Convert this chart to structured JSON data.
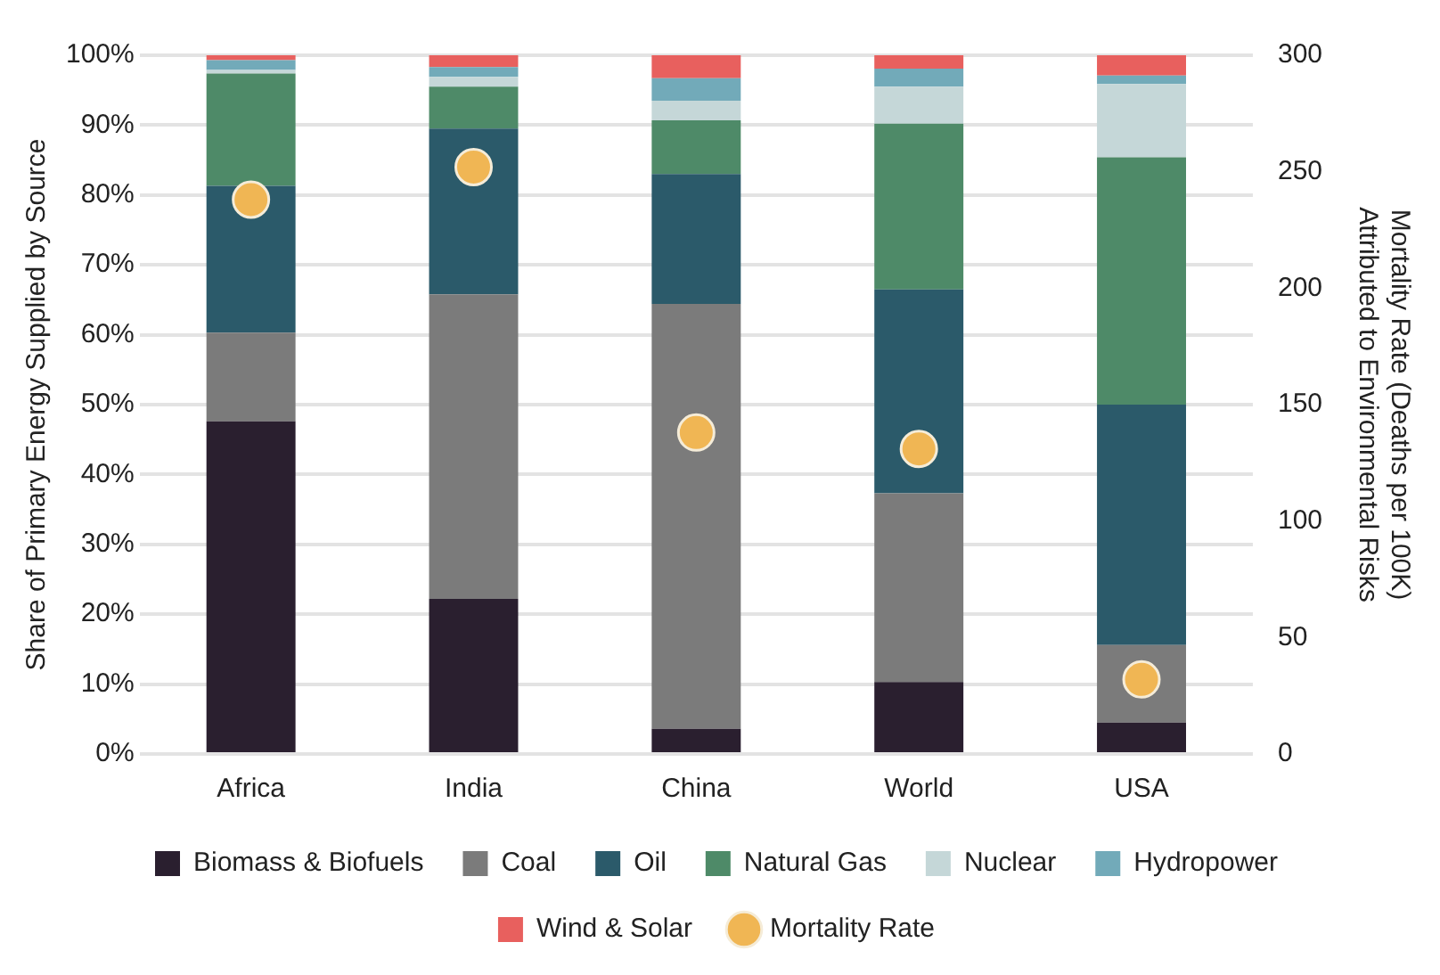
{
  "chart_data": {
    "type": "bar",
    "stacked": true,
    "ylabel": "Share of Primary Energy Supplied by Source",
    "y2label": "Mortality Rate (Deaths per 100K) Attributed to Environmental Risks",
    "categories": [
      "Africa",
      "India",
      "China",
      "World",
      "USA"
    ],
    "ylim": [
      0,
      100
    ],
    "yticks": [
      {
        "value": 0,
        "label": "0%"
      },
      {
        "value": 10,
        "label": "10%"
      },
      {
        "value": 20,
        "label": "20%"
      },
      {
        "value": 30,
        "label": "30%"
      },
      {
        "value": 40,
        "label": "40%"
      },
      {
        "value": 50,
        "label": "50%"
      },
      {
        "value": 60,
        "label": "60%"
      },
      {
        "value": 70,
        "label": "70%"
      },
      {
        "value": 80,
        "label": "80%"
      },
      {
        "value": 90,
        "label": "90%"
      },
      {
        "value": 100,
        "label": "100%"
      }
    ],
    "y2lim": [
      0,
      300
    ],
    "y2ticks": [
      0,
      50,
      100,
      150,
      200,
      250,
      300
    ],
    "grid": "y",
    "legend": "bottom",
    "series": [
      {
        "name": "Biomass & Biofuels",
        "color": "#2a1f2f",
        "values": [
          47.6,
          22.2,
          3.6,
          10.3,
          4.5
        ]
      },
      {
        "name": "Coal",
        "color": "#7b7b7b",
        "values": [
          12.7,
          43.6,
          60.8,
          27.0,
          11.1
        ]
      },
      {
        "name": "Oil",
        "color": "#2b5a6a",
        "values": [
          21.0,
          23.7,
          18.6,
          29.2,
          34.4
        ]
      },
      {
        "name": "Natural Gas",
        "color": "#4e8a68",
        "values": [
          16.1,
          6.0,
          7.7,
          23.7,
          35.4
        ]
      },
      {
        "name": "Nuclear",
        "color": "#c5d7d8",
        "values": [
          0.5,
          1.4,
          2.8,
          5.3,
          10.5
        ]
      },
      {
        "name": "Hydropower",
        "color": "#72aab9",
        "values": [
          1.4,
          1.4,
          3.2,
          2.6,
          1.2
        ]
      },
      {
        "name": "Wind & Solar",
        "color": "#e8605e",
        "values": [
          0.7,
          1.7,
          3.3,
          1.9,
          2.9
        ]
      },
      {
        "name": "Mortality Rate",
        "type": "scatter",
        "axis": "y2",
        "marker": "circle",
        "color": "#f0b654",
        "values": [
          238,
          252,
          138,
          131,
          32
        ]
      }
    ]
  }
}
